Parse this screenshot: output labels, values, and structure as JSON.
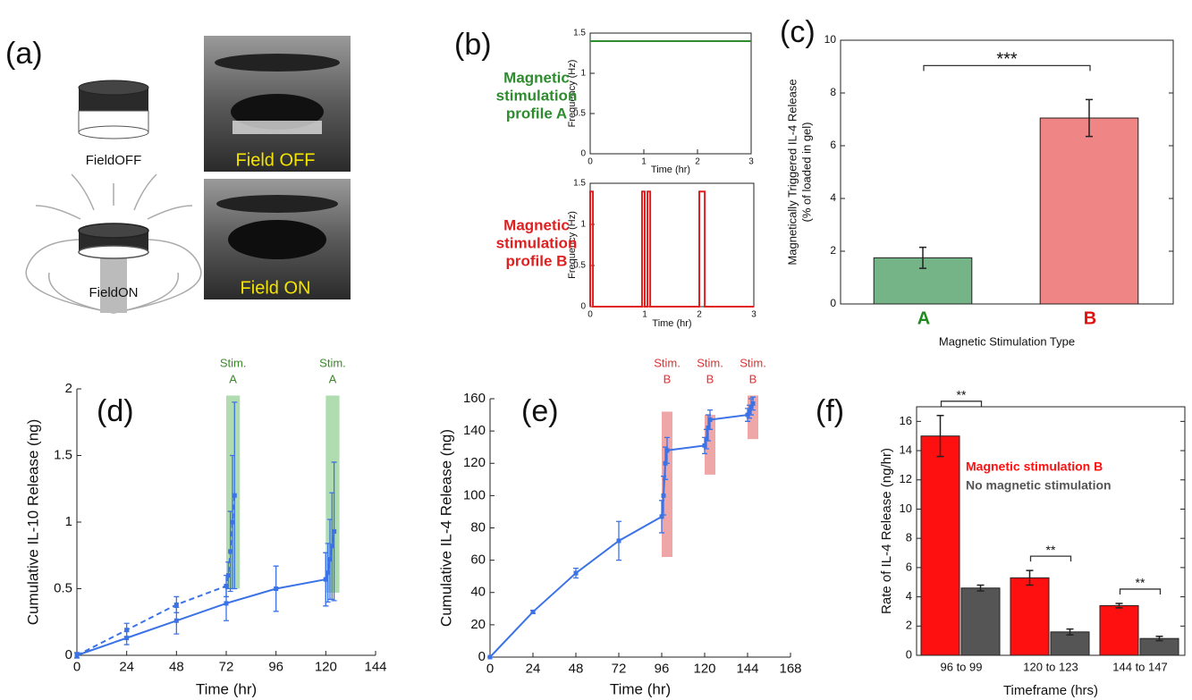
{
  "panel_a": {
    "label": "(a)",
    "captions": [
      "FieldOFF",
      "FieldON"
    ],
    "photo_labels": [
      "Field OFF",
      "Field ON"
    ]
  },
  "chart_data": [
    {
      "type": "line",
      "panel_label": "(b)",
      "side_label": [
        "Magnetic",
        "stimulation",
        "profile A"
      ],
      "side_label_color": "#2e8b2e",
      "xlabel": "Time (hr)",
      "ylabel": "Frequency (Hz)",
      "xlim": [
        0,
        3
      ],
      "xticks": [
        0,
        1,
        2,
        3
      ],
      "ylim": [
        0,
        1.5
      ],
      "yticks": [
        0,
        0.5,
        1,
        1.5
      ],
      "series": [
        {
          "color": "#2e8b2e",
          "x": [
            0,
            3
          ],
          "values": [
            1.4,
            1.4
          ]
        }
      ]
    },
    {
      "type": "line",
      "side_label": [
        "Magnetic",
        "stimulation",
        "profile B"
      ],
      "side_label_color": "#e02020",
      "xlabel": "Time (hr)",
      "ylabel": "Frequency (Hz)",
      "xlim": [
        0,
        3
      ],
      "xticks": [
        0,
        1,
        2,
        3
      ],
      "ylim": [
        0,
        1.5
      ],
      "yticks": [
        0,
        0.5,
        1,
        1.5
      ],
      "series": [
        {
          "color": "#e02020",
          "x": [
            0,
            0,
            0.05,
            0.05,
            0.95,
            0.95,
            1.0,
            1.0,
            1.05,
            1.05,
            1.1,
            1.1,
            2.0,
            2.0,
            2.1,
            2.1,
            3
          ],
          "values": [
            0,
            1.4,
            1.4,
            0,
            0,
            1.4,
            1.4,
            0,
            0,
            1.4,
            1.4,
            0,
            0,
            1.4,
            1.4,
            0,
            0
          ]
        }
      ]
    },
    {
      "type": "bar",
      "panel_label": "(c)",
      "ylabel": [
        "Magnetically Triggered IL-4 Release",
        "(% of loaded in gel)"
      ],
      "xlabel": "Magnetic Stimulation Type",
      "categories": [
        "A",
        "B"
      ],
      "category_label_colors": [
        "#1f8a1f",
        "#e01010"
      ],
      "values": [
        1.75,
        7.05
      ],
      "errors": [
        0.4,
        0.7
      ],
      "colors": [
        "#74b486",
        "#f08585"
      ],
      "ylim": [
        0,
        10
      ],
      "yticks": [
        0,
        2,
        4,
        6,
        8,
        10
      ],
      "annotations": [
        "***"
      ]
    },
    {
      "type": "line",
      "panel_label": "(d)",
      "xlabel": "Time (hr)",
      "ylabel": "Cumulative IL-10 Release (ng)",
      "xlim": [
        0,
        144
      ],
      "xticks": [
        0,
        24,
        48,
        72,
        96,
        120,
        144
      ],
      "ylim": [
        0,
        2
      ],
      "yticks": [
        0,
        0.5,
        1,
        1.5,
        2
      ],
      "spans": [
        {
          "start": 72,
          "end": 76,
          "range": [
            0.5,
            1.95
          ],
          "color": "#7cc47c",
          "labels": [
            "Stim.",
            "A"
          ],
          "label_color": "#3a8a2a"
        },
        {
          "start": 120,
          "end": 124,
          "range": [
            0.47,
            1.95
          ],
          "color": "#7cc47c",
          "labels": [
            "Stim.",
            "A"
          ],
          "label_color": "#3a8a2a"
        }
      ],
      "series": [
        {
          "color": "#3b73e6",
          "x": [
            0,
            24,
            48,
            72,
            96,
            120
          ],
          "values": [
            0,
            0.13,
            0.26,
            0.39,
            0.5,
            0.57
          ],
          "errors": [
            0.02,
            0.05,
            0.1,
            0.13,
            0.17,
            0.2
          ]
        },
        {
          "color": "#3b73e6",
          "dashed": true,
          "x": [
            0,
            24,
            48,
            72,
            73,
            74,
            75,
            76
          ],
          "values": [
            0,
            0.19,
            0.38,
            0.52,
            0.6,
            0.78,
            1.0,
            1.2
          ],
          "errors": [
            0.02,
            0.05,
            0.06,
            0.08,
            0.1,
            0.3,
            0.5,
            0.7
          ]
        },
        {
          "color": "#3b73e6",
          "x": [
            120,
            121,
            122,
            123,
            124
          ],
          "values": [
            0.57,
            0.62,
            0.72,
            0.82,
            0.93
          ],
          "errors": [
            0.2,
            0.22,
            0.3,
            0.4,
            0.52
          ]
        }
      ]
    },
    {
      "type": "line",
      "panel_label": "(e)",
      "xlabel": "Time (hr)",
      "ylabel": "Cumulative IL-4 Release (ng)",
      "xlim": [
        0,
        168
      ],
      "xticks": [
        0,
        24,
        48,
        72,
        96,
        120,
        144,
        168
      ],
      "ylim": [
        0,
        160
      ],
      "yticks": [
        0,
        20,
        40,
        60,
        80,
        100,
        120,
        140,
        160
      ],
      "spans": [
        {
          "start": 96,
          "end": 99,
          "range": [
            62,
            152
          ],
          "color": "#e26a6a",
          "labels": [
            "Stim.",
            "B"
          ],
          "label_color": "#e03030"
        },
        {
          "start": 120,
          "end": 123,
          "range": [
            113,
            150
          ],
          "color": "#e26a6a",
          "labels": [
            "Stim.",
            "B"
          ],
          "label_color": "#e03030"
        },
        {
          "start": 144,
          "end": 147,
          "range": [
            135,
            162
          ],
          "color": "#e26a6a",
          "labels": [
            "Stim.",
            "B"
          ],
          "label_color": "#e03030"
        }
      ],
      "series": [
        {
          "color": "#3b73e6",
          "x": [
            0,
            24,
            48,
            72,
            96,
            97,
            98,
            99,
            120,
            121,
            122,
            123,
            144,
            145,
            146,
            147
          ],
          "values": [
            0,
            28,
            52,
            72,
            87,
            100,
            120,
            128,
            131,
            135,
            142,
            147,
            150,
            152,
            155,
            157
          ],
          "errors": [
            0,
            1,
            3,
            12,
            10,
            12,
            10,
            8,
            5,
            6,
            8,
            6,
            4,
            4,
            5,
            4
          ]
        }
      ]
    },
    {
      "type": "bar",
      "panel_label": "(f)",
      "xlabel": "Timeframe (hrs)",
      "ylabel": "Rate of IL-4 Release (ng/hr)",
      "categories": [
        "96 to 99",
        "120 to 123",
        "144 to 147"
      ],
      "ylim": [
        0,
        17
      ],
      "yticks": [
        0,
        2,
        4,
        6,
        8,
        10,
        12,
        14,
        16
      ],
      "annotations": [
        "**",
        "**",
        "**"
      ],
      "series": [
        {
          "name": "Magnetic stimulation B",
          "color": "#ff1010",
          "values": [
            15,
            5.3,
            3.4
          ],
          "errors": [
            1.4,
            0.5,
            0.15
          ]
        },
        {
          "name": "No magnetic stimulation",
          "color": "#555555",
          "values": [
            4.6,
            1.6,
            1.15
          ],
          "errors": [
            0.2,
            0.2,
            0.15
          ]
        }
      ]
    }
  ]
}
